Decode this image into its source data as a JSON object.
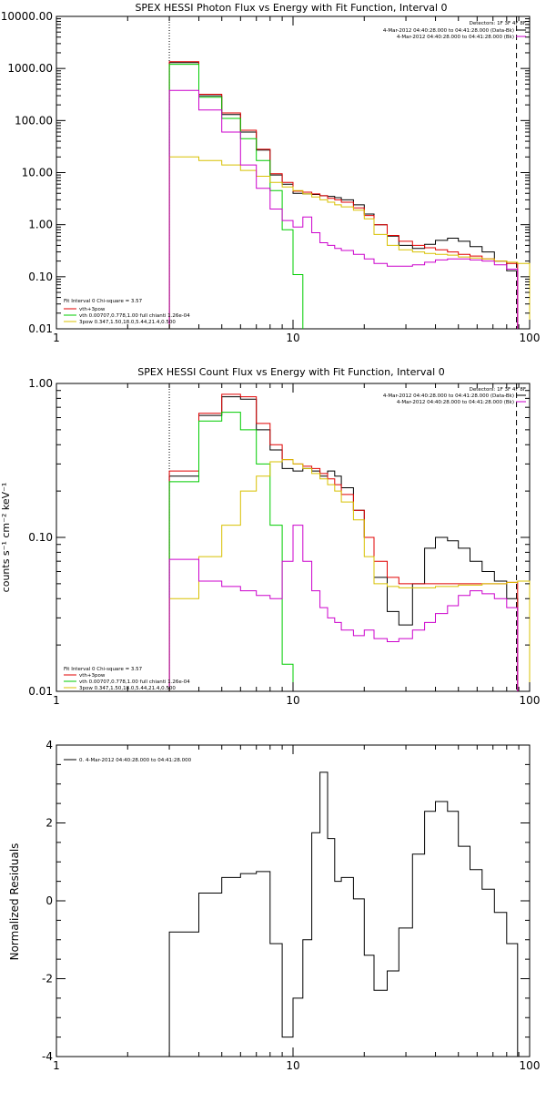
{
  "colors": {
    "total": "#000000",
    "fit_sum": "#e00000",
    "thermal": "#00cc00",
    "powerlaw": "#d8c000",
    "background": "#cc00cc"
  },
  "chart_data": [
    {
      "type": "line",
      "step": true,
      "title": "SPEX HESSI Photon Flux vs Energy with Fit Function, Interval 0",
      "xlabel": "",
      "ylabel": "",
      "xscale": "log",
      "yscale": "log",
      "xlim": [
        1,
        100
      ],
      "ylim": [
        0.01,
        10000
      ],
      "xticks": [
        1,
        10,
        100
      ],
      "xtick_labels": [
        "1",
        "10",
        "100"
      ],
      "yticks": [
        0.01,
        0.1,
        1,
        10,
        100,
        1000,
        10000
      ],
      "ytick_labels": [
        "0.01",
        "0.10",
        "1.00",
        "10.00",
        "100.00",
        "1000.00",
        "10000.00"
      ],
      "vlines": [
        {
          "x": 3.0,
          "style": "dotted"
        },
        {
          "x": 88,
          "style": "dashed"
        }
      ],
      "legend_top_right": [
        "Detectors: 1F 3F 4F 8F",
        "4-Mar-2012 04:40:28.000 to 04:41:28.000 (Data-Bk)",
        "4-Mar-2012 04:40:28.000 to 04:41:28.000 (Bk)"
      ],
      "legend_bottom_left": [
        "Fit Interval  0    Chi-square = 3.57",
        "vth+3pow",
        "vth 0.00707,0.778,1.00   full chianti 1.26e-04",
        "3pow 0.347,1.50,18.0,5.44,21.4,0.500"
      ],
      "series": [
        {
          "key": "total",
          "edges": [
            3.0,
            4.0,
            5.0,
            6.0,
            7.0,
            8.0,
            9.0,
            10.0,
            11.0,
            12.0,
            13.0,
            14.0,
            15.0,
            16.0,
            18.0,
            20.0,
            22.0,
            25.0,
            28.0,
            32.0,
            36.0,
            40.0,
            45.0,
            50.0,
            56.0,
            63.0,
            71.0,
            80.0,
            89.0
          ],
          "values": [
            1300,
            300,
            130,
            60,
            27,
            9,
            6,
            4,
            3.9,
            3.8,
            3.6,
            3.5,
            3.3,
            3.0,
            2.4,
            1.6,
            1.0,
            0.6,
            0.4,
            0.35,
            0.42,
            0.5,
            0.55,
            0.48,
            0.38,
            0.3,
            0.2,
            0.13
          ]
        },
        {
          "key": "fit_sum",
          "edges": [
            3.0,
            4.0,
            5.0,
            6.0,
            7.0,
            8.0,
            9.0,
            10.0,
            11.0,
            12.0,
            13.0,
            14.0,
            15.0,
            16.0,
            18.0,
            20.0,
            22.0,
            25.0,
            28.0,
            32.0,
            36.0,
            40.0,
            45.0,
            50.0,
            56.0,
            63.0,
            71.0,
            80.0,
            89.0
          ],
          "values": [
            1350,
            320,
            140,
            65,
            28,
            9.5,
            6.5,
            4.4,
            4.2,
            3.9,
            3.6,
            3.2,
            3.0,
            2.7,
            2.1,
            1.5,
            1.0,
            0.62,
            0.48,
            0.4,
            0.36,
            0.33,
            0.3,
            0.27,
            0.25,
            0.22,
            0.2,
            0.18
          ]
        },
        {
          "key": "thermal",
          "edges": [
            3.0,
            4.0,
            5.0,
            6.0,
            7.0,
            8.0,
            9.0,
            10.0,
            11.0
          ],
          "values": [
            1200,
            280,
            110,
            45,
            17,
            4.5,
            0.8,
            0.11
          ]
        },
        {
          "key": "powerlaw",
          "edges": [
            3.0,
            4.0,
            5.0,
            6.0,
            7.0,
            8.0,
            9.0,
            10.0,
            11.0,
            12.0,
            13.0,
            14.0,
            15.0,
            16.0,
            18.0,
            20.0,
            22.0,
            25.0,
            28.0,
            32.0,
            36.0,
            40.0,
            45.0,
            50.0,
            56.0,
            63.0,
            71.0,
            80.0,
            89.0,
            100.0
          ],
          "values": [
            20,
            17,
            14,
            11,
            8.5,
            6.5,
            5.3,
            4.5,
            3.9,
            3.4,
            3.0,
            2.7,
            2.4,
            2.2,
            1.9,
            1.3,
            0.65,
            0.4,
            0.33,
            0.3,
            0.28,
            0.27,
            0.26,
            0.24,
            0.23,
            0.22,
            0.2,
            0.19,
            0.18
          ]
        },
        {
          "key": "background",
          "edges": [
            3.0,
            4.0,
            5.0,
            6.0,
            7.0,
            8.0,
            9.0,
            10.0,
            11.0,
            12.0,
            13.0,
            14.0,
            15.0,
            16.0,
            18.0,
            20.0,
            22.0,
            25.0,
            28.0,
            32.0,
            36.0,
            40.0,
            45.0,
            50.0,
            56.0,
            63.0,
            71.0,
            80.0,
            89.0
          ],
          "values": [
            380,
            160,
            60,
            14,
            5,
            2,
            1.2,
            0.9,
            1.4,
            0.7,
            0.45,
            0.4,
            0.35,
            0.32,
            0.27,
            0.22,
            0.18,
            0.16,
            0.16,
            0.17,
            0.19,
            0.21,
            0.22,
            0.22,
            0.21,
            0.2,
            0.17,
            0.14
          ]
        }
      ]
    },
    {
      "type": "line",
      "step": true,
      "title": "SPEX HESSI Count Flux vs Energy with Fit Function, Interval 0",
      "xlabel": "",
      "ylabel": "counts s⁻¹ cm⁻² keV⁻¹",
      "xscale": "log",
      "yscale": "log",
      "xlim": [
        1,
        100
      ],
      "ylim": [
        0.01,
        1.0
      ],
      "xticks": [
        1,
        10,
        100
      ],
      "xtick_labels": [
        "1",
        "10",
        "100"
      ],
      "yticks": [
        0.01,
        0.1,
        1
      ],
      "ytick_labels": [
        "0.01",
        "0.10",
        "1.00"
      ],
      "vlines": [
        {
          "x": 3.0,
          "style": "dotted"
        },
        {
          "x": 88,
          "style": "dashed"
        }
      ],
      "legend_top_right": [
        "Detectors: 1F 3F 4F 8F",
        "4-Mar-2012 04:40:28.000 to 04:41:28.000 (Data-Bk)",
        "4-Mar-2012 04:40:28.000 to 04:41:28.000 (Bk)"
      ],
      "legend_bottom_left": [
        "Fit Interval  0    Chi-square = 3.57",
        "vth+3pow",
        "vth 0.00707,0.778,1.00   full chianti 1.26e-04",
        "3pow 0.347,1.50,18.0,5.44,21.4,0.500"
      ],
      "series": [
        {
          "key": "total",
          "edges": [
            3.0,
            4.0,
            5.0,
            6.0,
            7.0,
            8.0,
            9.0,
            10.0,
            11.0,
            12.0,
            13.0,
            14.0,
            15.0,
            16.0,
            18.0,
            20.0,
            22.0,
            25.0,
            28.0,
            32.0,
            36.0,
            40.0,
            45.0,
            50.0,
            56.0,
            63.0,
            71.0,
            80.0,
            89.0
          ],
          "values": [
            0.25,
            0.62,
            0.82,
            0.79,
            0.5,
            0.37,
            0.28,
            0.27,
            0.28,
            0.27,
            0.25,
            0.27,
            0.25,
            0.21,
            0.15,
            0.1,
            0.055,
            0.033,
            0.027,
            0.05,
            0.085,
            0.1,
            0.095,
            0.085,
            0.07,
            0.06,
            0.052,
            0.04
          ]
        },
        {
          "key": "fit_sum",
          "edges": [
            3.0,
            4.0,
            5.0,
            6.0,
            7.0,
            8.0,
            9.0,
            10.0,
            11.0,
            12.0,
            13.0,
            14.0,
            15.0,
            16.0,
            18.0,
            20.0,
            22.0,
            25.0,
            28.0,
            32.0,
            36.0,
            40.0,
            45.0,
            50.0,
            56.0,
            63.0,
            71.0,
            80.0,
            89.0
          ],
          "values": [
            0.27,
            0.64,
            0.85,
            0.82,
            0.55,
            0.4,
            0.32,
            0.3,
            0.29,
            0.28,
            0.26,
            0.24,
            0.22,
            0.19,
            0.15,
            0.1,
            0.07,
            0.055,
            0.05,
            0.05,
            0.05,
            0.05,
            0.05,
            0.05,
            0.05,
            0.05,
            0.05,
            0.051
          ]
        },
        {
          "key": "thermal",
          "edges": [
            3.0,
            4.0,
            5.0,
            6.0,
            7.0,
            8.0,
            9.0,
            10.0
          ],
          "values": [
            0.23,
            0.57,
            0.65,
            0.5,
            0.3,
            0.12,
            0.015
          ]
        },
        {
          "key": "powerlaw",
          "edges": [
            3.0,
            4.0,
            5.0,
            6.0,
            7.0,
            8.0,
            9.0,
            10.0,
            11.0,
            12.0,
            13.0,
            14.0,
            15.0,
            16.0,
            18.0,
            20.0,
            22.0,
            25.0,
            28.0,
            32.0,
            36.0,
            40.0,
            45.0,
            50.0,
            56.0,
            63.0,
            71.0,
            80.0,
            89.0,
            100.0
          ],
          "values": [
            0.04,
            0.075,
            0.12,
            0.2,
            0.25,
            0.31,
            0.32,
            0.3,
            0.28,
            0.26,
            0.24,
            0.22,
            0.2,
            0.17,
            0.13,
            0.075,
            0.05,
            0.048,
            0.047,
            0.047,
            0.047,
            0.048,
            0.048,
            0.049,
            0.049,
            0.05,
            0.05,
            0.051,
            0.052
          ]
        },
        {
          "key": "background",
          "edges": [
            3.0,
            4.0,
            5.0,
            6.0,
            7.0,
            8.0,
            9.0,
            10.0,
            11.0,
            12.0,
            13.0,
            14.0,
            15.0,
            16.0,
            18.0,
            20.0,
            22.0,
            25.0,
            28.0,
            32.0,
            36.0,
            40.0,
            45.0,
            50.0,
            56.0,
            63.0,
            71.0,
            80.0,
            89.0
          ],
          "values": [
            0.072,
            0.052,
            0.048,
            0.045,
            0.042,
            0.04,
            0.07,
            0.12,
            0.07,
            0.045,
            0.035,
            0.03,
            0.028,
            0.025,
            0.023,
            0.025,
            0.022,
            0.021,
            0.022,
            0.025,
            0.028,
            0.032,
            0.036,
            0.042,
            0.045,
            0.043,
            0.04,
            0.035
          ]
        }
      ]
    },
    {
      "type": "line",
      "step": true,
      "title": "",
      "xlabel": "",
      "ylabel": "Normalized Residuals",
      "xscale": "log",
      "yscale": "linear",
      "xlim": [
        1,
        100
      ],
      "ylim": [
        -4,
        4
      ],
      "xticks": [
        1,
        10,
        100
      ],
      "xtick_labels": [
        "1",
        "10",
        "100"
      ],
      "yticks": [
        -4,
        -2,
        0,
        2,
        4
      ],
      "ytick_labels": [
        "-4",
        "-2",
        "0",
        "2",
        "4"
      ],
      "legend": [
        "0. 4-Mar-2012 04:40:28.000 to 04:41:28.000"
      ],
      "series": [
        {
          "key": "total",
          "edges": [
            3.0,
            4.0,
            5.0,
            6.0,
            7.0,
            8.0,
            9.0,
            10.0,
            11.0,
            12.0,
            13.0,
            14.0,
            15.0,
            16.0,
            18.0,
            20.0,
            22.0,
            25.0,
            28.0,
            32.0,
            36.0,
            40.0,
            45.0,
            50.0,
            56.0,
            63.0,
            71.0,
            80.0,
            89.0
          ],
          "values": [
            -0.8,
            0.2,
            0.6,
            0.7,
            0.75,
            -1.1,
            -3.5,
            -2.5,
            -1.0,
            1.75,
            3.3,
            1.6,
            0.5,
            0.6,
            0.05,
            -1.4,
            -2.3,
            -1.8,
            -0.7,
            1.2,
            2.3,
            2.55,
            2.3,
            1.4,
            0.8,
            0.3,
            -0.3,
            -1.1
          ]
        }
      ],
      "start_at": -4
    }
  ]
}
